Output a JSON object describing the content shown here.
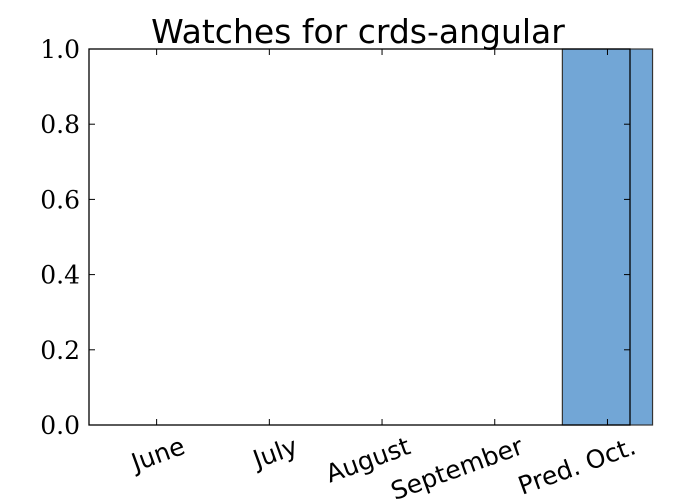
{
  "chart_data": {
    "type": "bar",
    "title": "Watches for crds-angular",
    "categories": [
      "June",
      "July",
      "August",
      "September",
      "Pred. Oct."
    ],
    "values": [
      0,
      0,
      0,
      0,
      1.0
    ],
    "ylim": [
      0,
      1.0
    ],
    "yticks": [
      "0.0",
      "0.2",
      "0.4",
      "0.6",
      "0.8",
      "1.0"
    ],
    "xlabel": "",
    "ylabel": "",
    "grid": false,
    "bar_color": "#72a6d6",
    "edge_color": "#333333"
  }
}
